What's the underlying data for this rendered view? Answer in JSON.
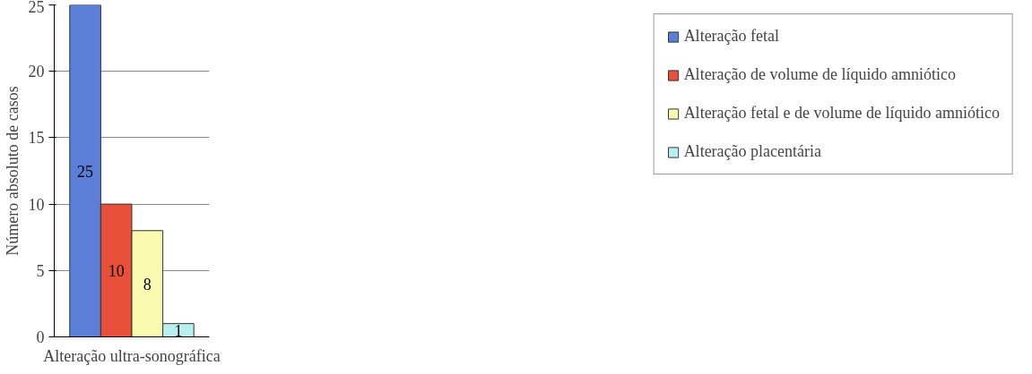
{
  "chart_data": {
    "type": "bar",
    "ylabel": "Número absoluto de casos",
    "categories": [
      "Alteração ultra-sonográfica"
    ],
    "series": [
      {
        "name": "Alteração fetal",
        "color": "#5b7fd6",
        "values": [
          25
        ]
      },
      {
        "name": "Alteração de volume de líquido amniótico",
        "color": "#e8503a",
        "values": [
          10
        ]
      },
      {
        "name": "Alteração fetal e de volume de líquido amniótico",
        "color": "#fafab0",
        "values": [
          8
        ]
      },
      {
        "name": "Alteração placentária",
        "color": "#b8f0f0",
        "values": [
          1
        ]
      }
    ],
    "ylim": [
      0,
      25
    ],
    "yticks": [
      0,
      5,
      10,
      15,
      20,
      25
    ],
    "grid": "y",
    "legend": "right",
    "data_labels": true
  }
}
